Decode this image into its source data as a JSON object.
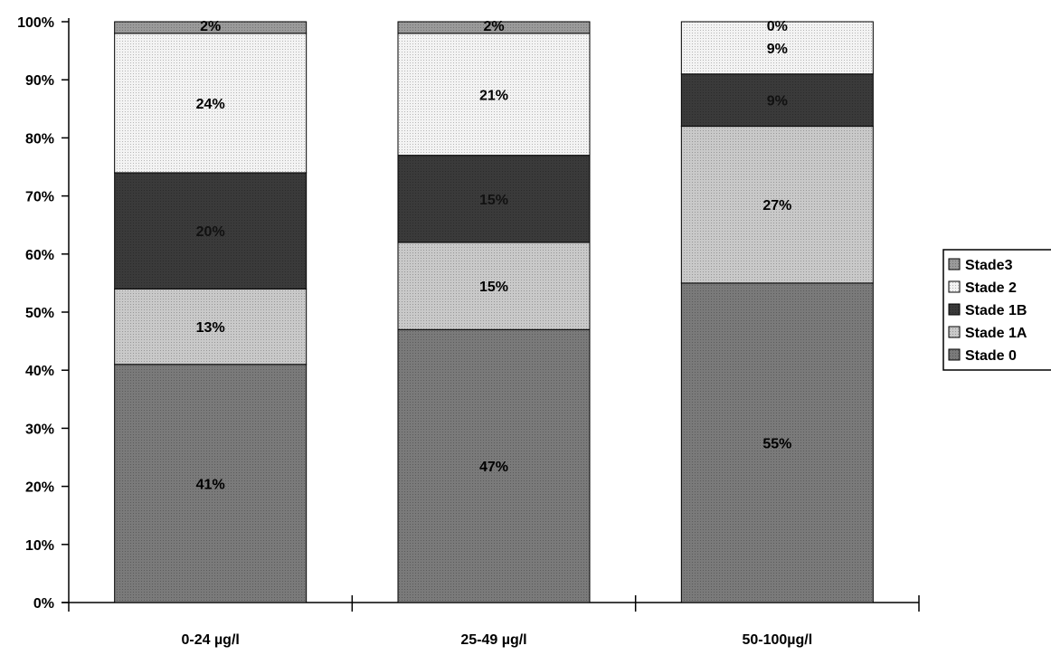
{
  "chart_data": {
    "type": "bar",
    "stacked": true,
    "percent_stacked": true,
    "title": "",
    "xlabel": "",
    "ylabel": "",
    "ylim": [
      0,
      100
    ],
    "y_ticks": [
      "0%",
      "10%",
      "20%",
      "30%",
      "40%",
      "50%",
      "60%",
      "70%",
      "80%",
      "90%",
      "100%"
    ],
    "categories": [
      "0-24 µg/l",
      "25-49 µg/l",
      "50-100µg/l"
    ],
    "series": [
      {
        "name": "Stade 0",
        "values": [
          41,
          47,
          55
        ],
        "labels": [
          "41%",
          "47%",
          "55%"
        ],
        "color": "#7a7a7a"
      },
      {
        "name": "Stade 1A",
        "values": [
          13,
          15,
          27
        ],
        "labels": [
          "13%",
          "15%",
          "27%"
        ],
        "color": "#c9c9c9"
      },
      {
        "name": "Stade 1B",
        "values": [
          20,
          15,
          9
        ],
        "labels": [
          "20%",
          "15%",
          "9%"
        ],
        "color": "#3a3a3a"
      },
      {
        "name": "Stade 2",
        "values": [
          24,
          21,
          9
        ],
        "labels": [
          "24%",
          "21%",
          "9%"
        ],
        "color": "#f3f3f3"
      },
      {
        "name": "Stade3",
        "values": [
          2,
          2,
          0
        ],
        "labels": [
          "2%",
          "2%",
          "0%"
        ],
        "color": "#9a9a9a"
      }
    ],
    "legend": {
      "position": "right",
      "entries_top_to_bottom": [
        "Stade3",
        "Stade 2",
        "Stade 1B",
        "Stade 1A",
        "Stade 0"
      ]
    },
    "grid": false
  }
}
